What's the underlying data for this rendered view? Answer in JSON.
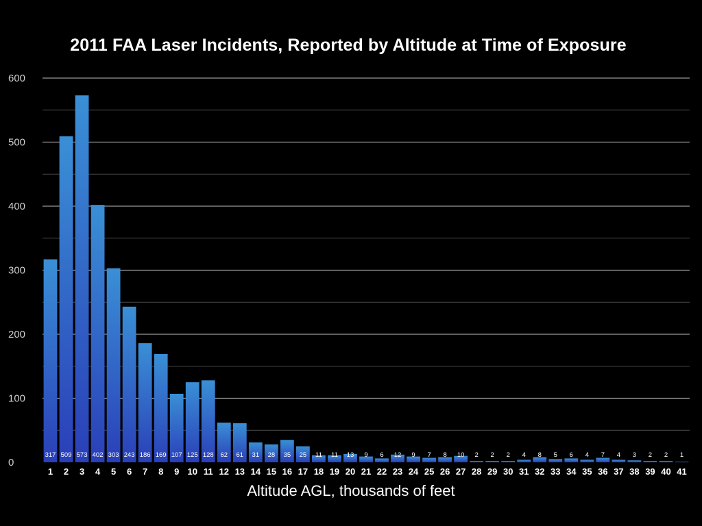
{
  "chart_data": {
    "type": "bar",
    "title": "2011 FAA Laser Incidents, Reported by Altitude at Time of Exposure",
    "xlabel": "Altitude AGL, thousands of feet",
    "ylabel": "",
    "ylim": [
      0,
      600
    ],
    "yticks": [
      0,
      100,
      200,
      300,
      400,
      500,
      600
    ],
    "grid": true,
    "categories": [
      "1",
      "2",
      "3",
      "4",
      "5",
      "6",
      "7",
      "8",
      "9",
      "10",
      "11",
      "12",
      "13",
      "14",
      "15",
      "16",
      "17",
      "18",
      "19",
      "20",
      "21",
      "22",
      "23",
      "24",
      "25",
      "26",
      "27",
      "28",
      "29",
      "30",
      "31",
      "32",
      "33",
      "34",
      "35",
      "36",
      "37",
      "38",
      "39",
      "40",
      "41"
    ],
    "values": [
      317,
      509,
      573,
      402,
      303,
      243,
      186,
      169,
      107,
      125,
      128,
      62,
      61,
      31,
      28,
      35,
      25,
      11,
      11,
      13,
      9,
      6,
      12,
      9,
      7,
      8,
      10,
      2,
      2,
      2,
      4,
      8,
      5,
      6,
      4,
      7,
      4,
      3,
      2,
      2,
      1
    ],
    "colors": {
      "bar_top": "#3a8fd6",
      "bar_bottom": "#2a3fb8",
      "grid": "#9a9a9a",
      "grid_minor": "#4a4a4a",
      "background": "#000000",
      "text": "#ffffff"
    }
  }
}
